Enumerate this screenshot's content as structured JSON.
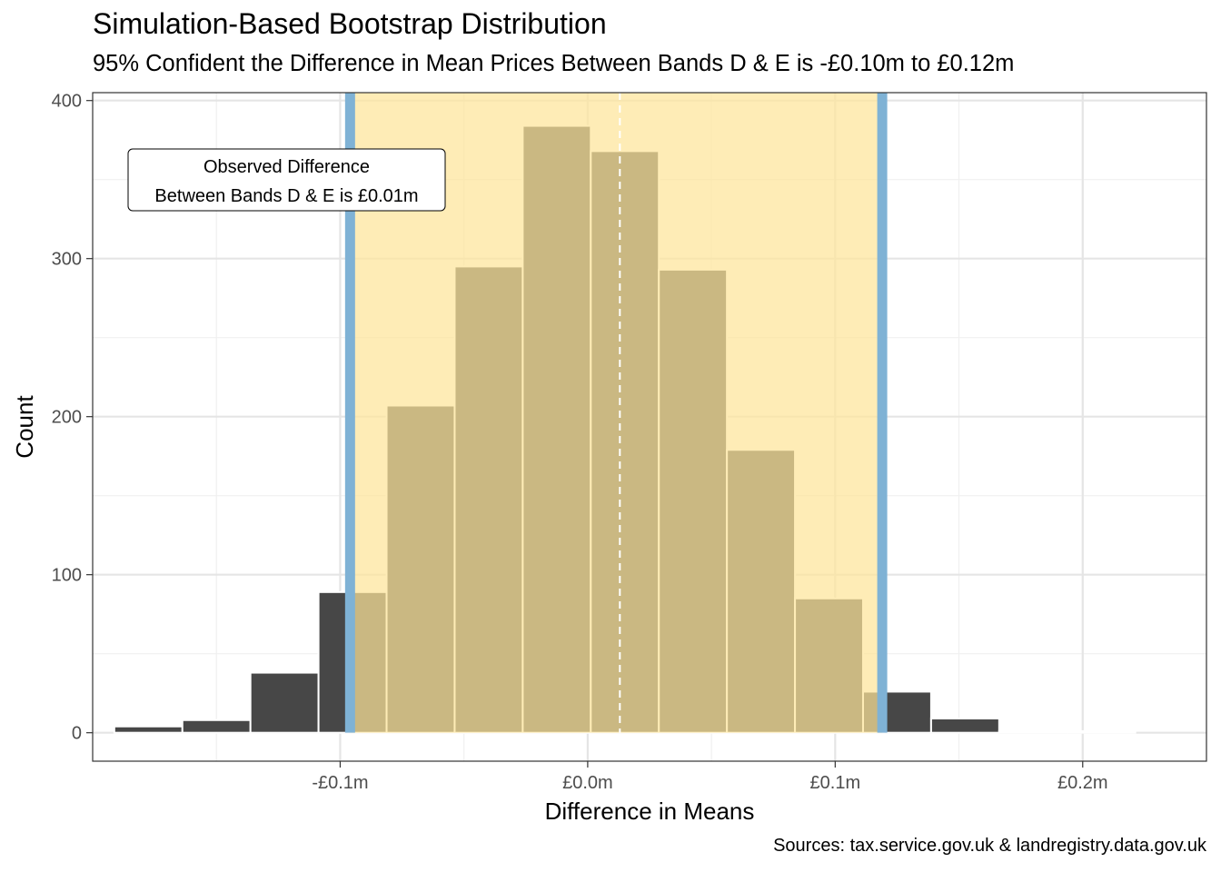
{
  "title": "Simulation-Based Bootstrap Distribution",
  "subtitle": "95% Confident the Difference in Mean Prices Between Bands D & E is -£0.10m to £0.12m",
  "caption": "Sources: tax.service.gov.uk & landregistry.data.gov.uk",
  "colors": {
    "bar_fill": "#474747",
    "bar_outline": "#ffffff",
    "ci_shade": "#fde59a",
    "ci_line": "#7fb2d5",
    "observed_line": "#ffffff",
    "panel_border": "#333333",
    "grid": "#e5e5e5"
  },
  "chart_data": {
    "type": "bar",
    "title": "Simulation-Based Bootstrap Distribution",
    "subtitle": "95% Confident the Difference in Mean Prices Between Bands D & E is -£0.10m to £0.12m",
    "xlabel": "Difference in Means",
    "ylabel": "Count",
    "x_unit": "£m",
    "xlim": [
      -0.2,
      0.25
    ],
    "ylim": [
      -18,
      405
    ],
    "x_ticks": [
      {
        "value": -0.1,
        "label": "-£0.1m"
      },
      {
        "value": 0.0,
        "label": "£0.0m"
      },
      {
        "value": 0.1,
        "label": "£0.1m"
      },
      {
        "value": 0.2,
        "label": "£0.2m"
      }
    ],
    "y_ticks": [
      {
        "value": 0,
        "label": "0"
      },
      {
        "value": 100,
        "label": "100"
      },
      {
        "value": 200,
        "label": "200"
      },
      {
        "value": 300,
        "label": "300"
      },
      {
        "value": 400,
        "label": "400"
      }
    ],
    "grid": true,
    "bin_width": 0.0275,
    "bin_centers": [
      -0.1775,
      -0.15,
      -0.1225,
      -0.095,
      -0.0675,
      -0.04,
      -0.0125,
      0.015,
      0.0425,
      0.07,
      0.0975,
      0.125,
      0.1525,
      0.18,
      0.2075
    ],
    "counts": [
      4,
      8,
      38,
      89,
      207,
      295,
      384,
      368,
      293,
      179,
      85,
      26,
      9,
      1,
      1
    ],
    "ci_lower": -0.096,
    "ci_upper": 0.119,
    "observed_difference": 0.013,
    "annotation": [
      "Observed Difference",
      "Between Bands D & E is £0.01m"
    ]
  }
}
